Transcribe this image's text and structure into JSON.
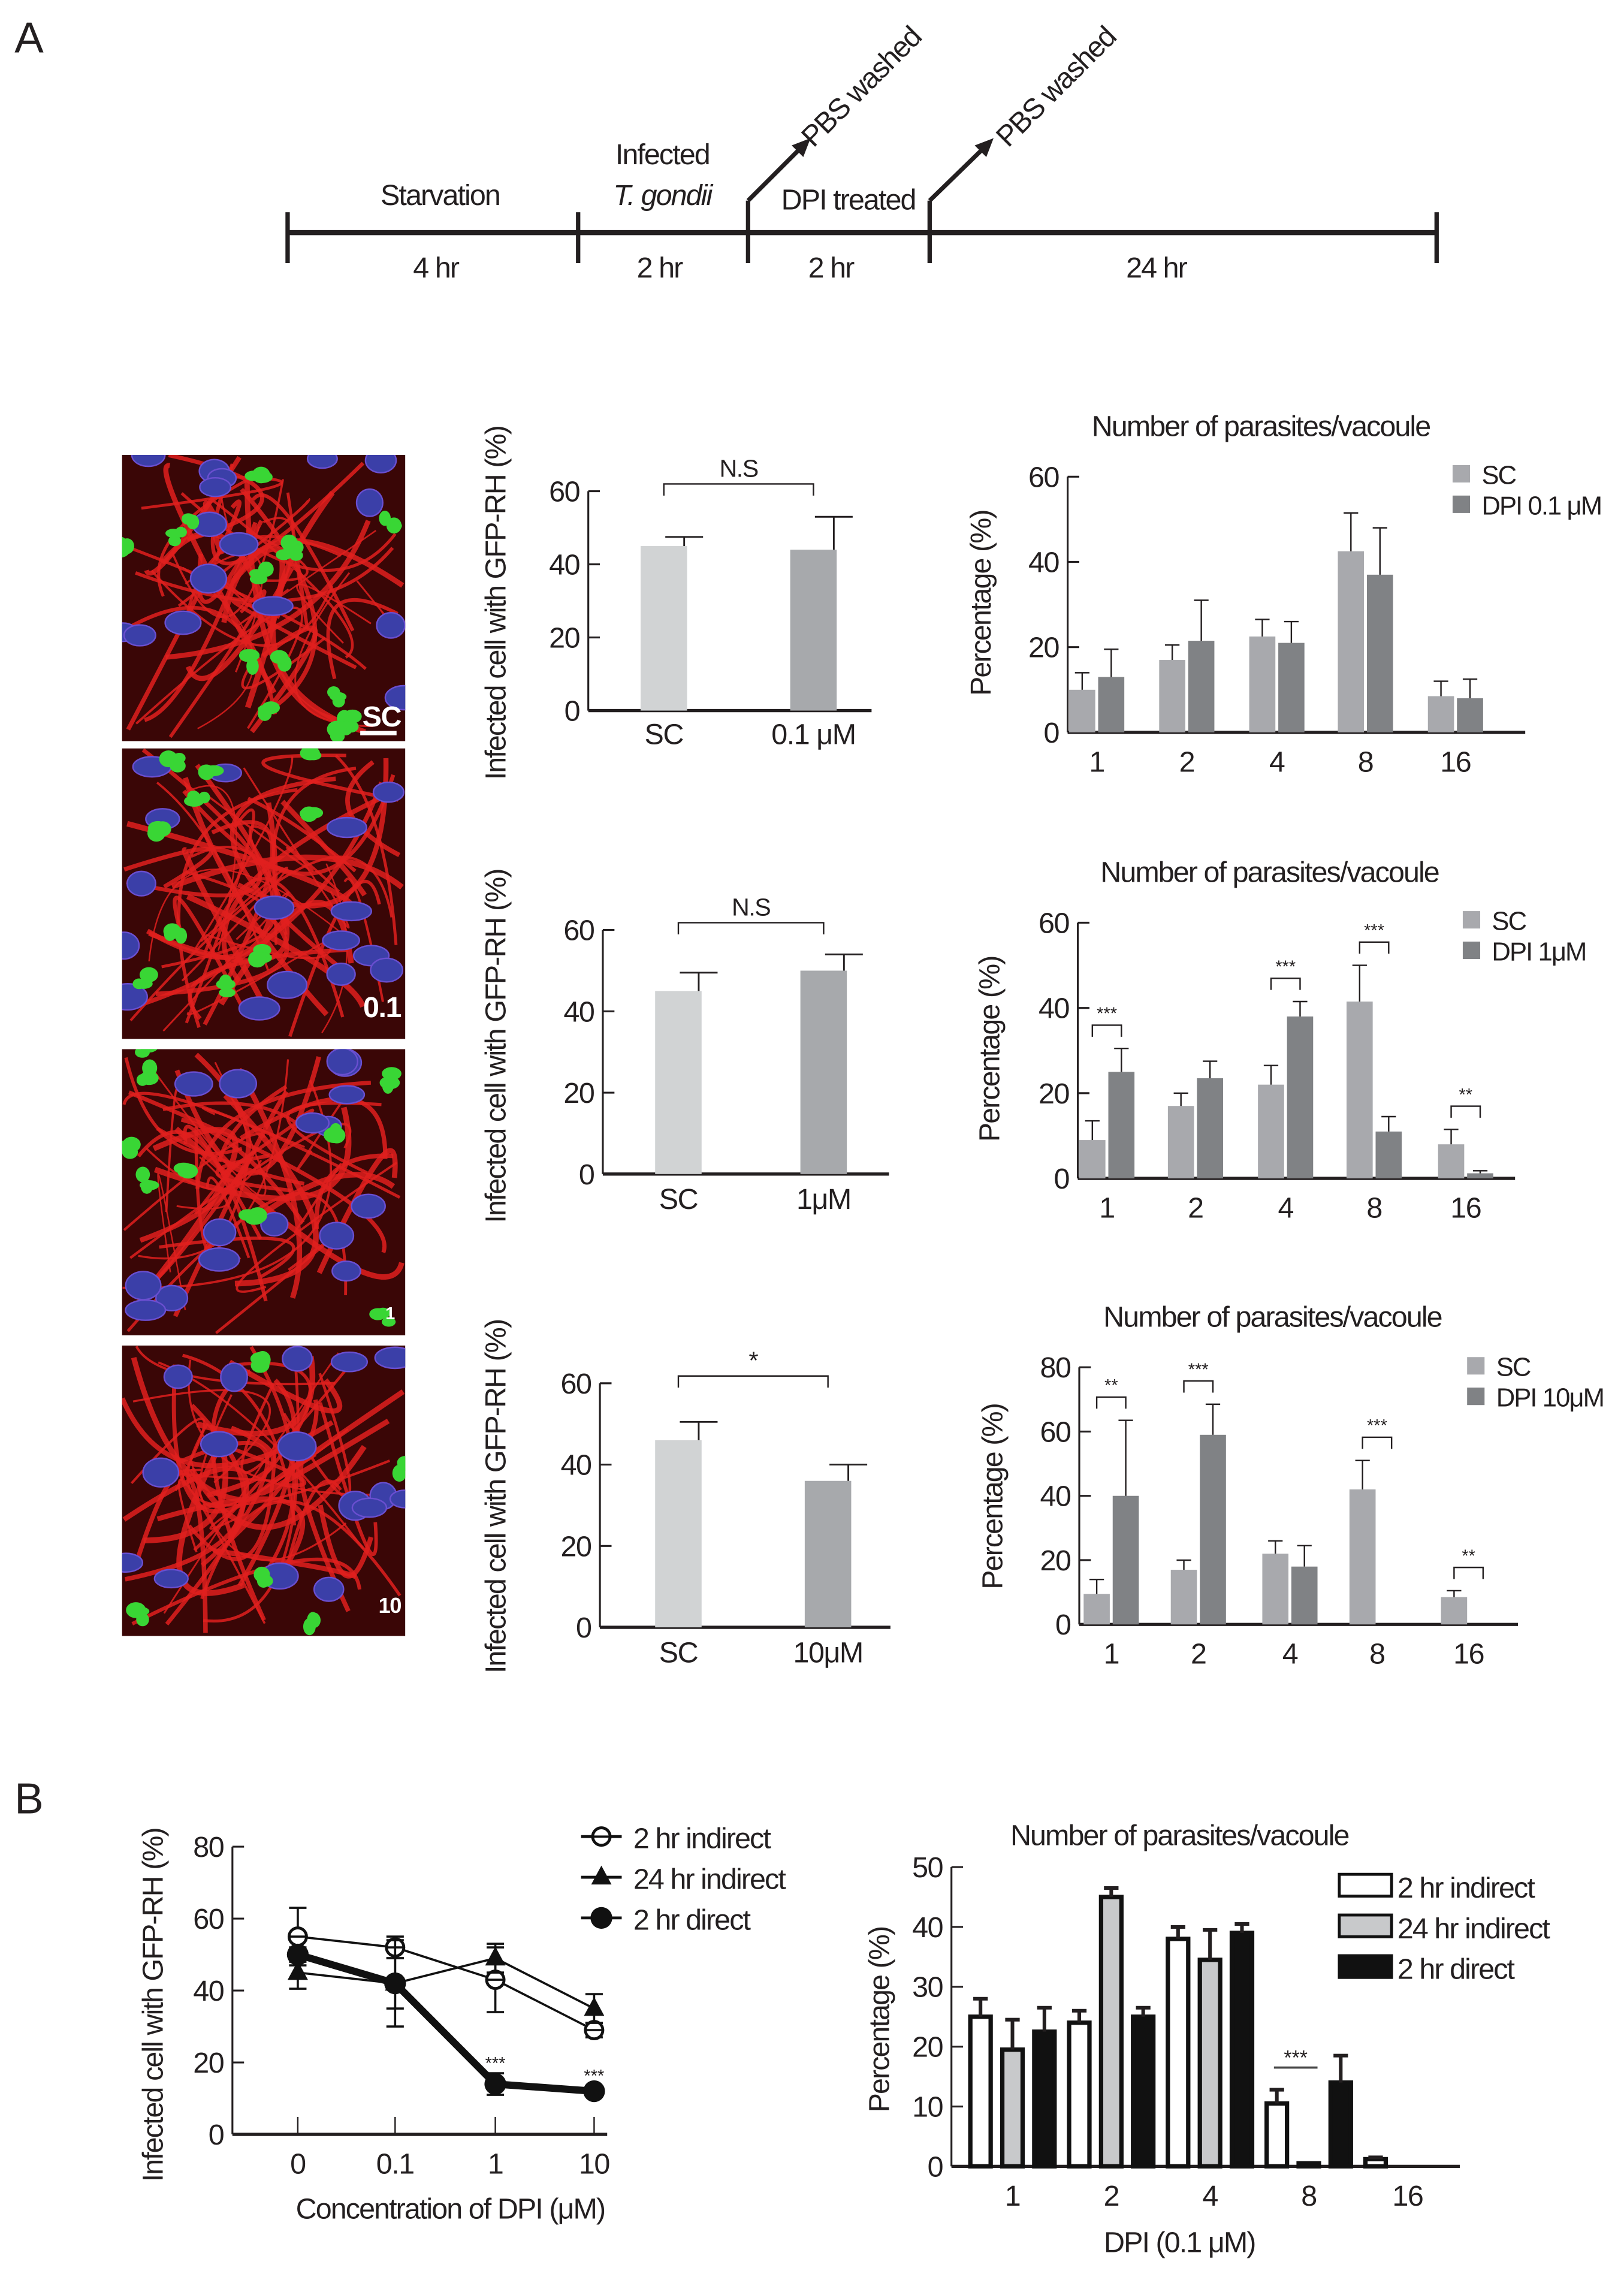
{
  "panel_labels": {
    "a": "A",
    "b": "B"
  },
  "timeline": {
    "steps": [
      {
        "label": "Starvation",
        "duration": "4 hr"
      },
      {
        "label": "Infected",
        "label2": "T. gondii",
        "duration": "2 hr"
      },
      {
        "label": "DPI treated",
        "duration": "2 hr"
      },
      {
        "label": "",
        "duration": "24 hr"
      }
    ],
    "arrows": [
      "PBS washed",
      "PBS washed"
    ]
  },
  "micrographs": [
    {
      "label": "SC"
    },
    {
      "label": "0.1"
    },
    {
      "label": "1"
    },
    {
      "label": "10"
    }
  ],
  "colors": {
    "sc": "#a8a9ad",
    "dpi": "#808285",
    "infection_sc": "#d1d3d4",
    "infection_dpi": "#a7a9ac",
    "nuclei": "#3b3fa8",
    "parasites": "#39d635",
    "actin": "#e0201e"
  },
  "chart_data": [
    {
      "type": "bar",
      "ylabel": "Infected cell with GFP-RH (%)",
      "categories": [
        "SC",
        "0.1 μM"
      ],
      "values": [
        45,
        44
      ],
      "errors": [
        2.5,
        9
      ],
      "ylim": [
        0,
        60
      ],
      "yticks": [
        "0",
        "20",
        "40",
        "60"
      ],
      "annotation": {
        "text": "N.S",
        "between": [
          "SC",
          "0.1 μM"
        ]
      }
    },
    {
      "type": "bar",
      "title": "Number of parasites/vacoule",
      "ylabel": "Percentage (%)",
      "categories": [
        "1",
        "2",
        "4",
        "8",
        "16"
      ],
      "ylim": [
        0,
        60
      ],
      "yticks": [
        "0",
        "20",
        "40",
        "60"
      ],
      "legend": "top-right",
      "series": [
        {
          "name": "SC",
          "values": [
            10,
            17,
            22.5,
            42.5,
            8.5
          ],
          "errors": [
            4,
            3.5,
            4,
            9,
            3.5
          ]
        },
        {
          "name": "DPI 0.1 μM",
          "values": [
            13,
            21.5,
            21,
            37,
            8
          ],
          "errors": [
            6.5,
            9.5,
            5,
            11,
            4.5
          ]
        }
      ],
      "significance": []
    },
    {
      "type": "bar",
      "ylabel": "Infected cell with GFP-RH (%)",
      "categories": [
        "SC",
        "1μM"
      ],
      "values": [
        45,
        50
      ],
      "errors": [
        4.5,
        4
      ],
      "ylim": [
        0,
        60
      ],
      "yticks": [
        "0",
        "20",
        "40",
        "60"
      ],
      "annotation": {
        "text": "N.S",
        "between": [
          "SC",
          "1μM"
        ]
      }
    },
    {
      "type": "bar",
      "title": "Number of parasites/vacoule",
      "ylabel": "Percentage (%)",
      "categories": [
        "1",
        "2",
        "4",
        "8",
        "16"
      ],
      "ylim": [
        0,
        60
      ],
      "yticks": [
        "0",
        "20",
        "40",
        "60"
      ],
      "legend": "top-right",
      "series": [
        {
          "name": "SC",
          "values": [
            9,
            17,
            22,
            41.5,
            8
          ],
          "errors": [
            4.5,
            3,
            4.5,
            8.5,
            3.5
          ]
        },
        {
          "name": "DPI 1μM",
          "values": [
            25,
            23.5,
            38,
            11,
            1.2
          ],
          "errors": [
            5.5,
            4,
            3.5,
            3.5,
            0.6
          ]
        }
      ],
      "significance": [
        {
          "category": "1",
          "text": "***"
        },
        {
          "category": "4",
          "text": "***"
        },
        {
          "category": "8",
          "text": "***"
        },
        {
          "category": "16",
          "text": "**"
        }
      ]
    },
    {
      "type": "bar",
      "ylabel": "Infected cell with GFP-RH (%)",
      "categories": [
        "SC",
        "10μM"
      ],
      "values": [
        46,
        36
      ],
      "errors": [
        4.5,
        4
      ],
      "ylim": [
        0,
        60
      ],
      "yticks": [
        "0",
        "20",
        "40",
        "60"
      ],
      "annotation": {
        "text": "*",
        "between": [
          "SC",
          "10μM"
        ]
      }
    },
    {
      "type": "bar",
      "title": "Number of parasites/vacoule",
      "ylabel": "Percentage (%)",
      "categories": [
        "1",
        "2",
        "4",
        "8",
        "16"
      ],
      "ylim": [
        0,
        80
      ],
      "yticks": [
        "0",
        "20",
        "40",
        "60",
        "80"
      ],
      "legend": "top-right",
      "series": [
        {
          "name": "SC",
          "values": [
            9.5,
            17,
            22,
            42,
            8.5
          ],
          "errors": [
            4.5,
            3,
            4,
            9,
            2
          ]
        },
        {
          "name": "DPI 10μM",
          "values": [
            40,
            59,
            18,
            0,
            0
          ],
          "errors": [
            23.5,
            9.5,
            6.5,
            0,
            0
          ]
        }
      ],
      "significance": [
        {
          "category": "1",
          "text": "**"
        },
        {
          "category": "2",
          "text": "***"
        },
        {
          "category": "8",
          "text": "***"
        },
        {
          "category": "16",
          "text": "**"
        }
      ]
    },
    {
      "type": "line",
      "ylabel": "Infected cell with GFP-RH (%)",
      "xlabel": "Concentration of DPI (μM)",
      "x": [
        "0",
        "0.1",
        "1",
        "10"
      ],
      "ylim": [
        0,
        80
      ],
      "yticks": [
        "0",
        "20",
        "40",
        "60",
        "80"
      ],
      "legend": "top-right",
      "series": [
        {
          "name": "2 hr indirect",
          "marker": "open-circle",
          "values": [
            55,
            52,
            43,
            29
          ],
          "errors": [
            8,
            3,
            9,
            2
          ]
        },
        {
          "name": "24 hr indirect",
          "marker": "triangle",
          "values": [
            45,
            42,
            49,
            35
          ],
          "errors": [
            4.5,
            7,
            4,
            4
          ]
        },
        {
          "name": "2 hr direct",
          "marker": "filled-circle",
          "values": [
            50,
            42,
            14,
            12
          ],
          "errors": [
            2,
            12,
            3,
            1.5
          ]
        }
      ],
      "annotations": [
        {
          "x": "1",
          "text": "***"
        },
        {
          "x": "10",
          "text": "***"
        }
      ]
    },
    {
      "type": "bar",
      "title": "Number of parasites/vacoule",
      "ylabel": "Percentage (%)",
      "xlabel": "DPI (0.1 μM)",
      "categories": [
        "1",
        "2",
        "4",
        "8",
        "16"
      ],
      "ylim": [
        0,
        50
      ],
      "yticks": [
        "0",
        "10",
        "20",
        "30",
        "40",
        "50"
      ],
      "legend": "top-right",
      "series": [
        {
          "name": "2 hr indirect",
          "color": "#ffffff",
          "values": [
            25,
            24,
            38,
            10.5,
            1.2
          ],
          "errors": [
            3,
            2,
            2,
            2.3,
            0.3
          ]
        },
        {
          "name": "24 hr indirect",
          "color": "#c8c9cb",
          "values": [
            19.5,
            45,
            34.5,
            0.5,
            0
          ],
          "errors": [
            5,
            1.5,
            5,
            0,
            0
          ]
        },
        {
          "name": "2 hr direct",
          "color": "#111111",
          "values": [
            22.5,
            25,
            39,
            14,
            0
          ],
          "errors": [
            4,
            1.5,
            1.5,
            4.5,
            0
          ]
        }
      ],
      "significance": [
        {
          "category": "8",
          "text": "***",
          "series": [
            "2 hr indirect",
            "24 hr indirect"
          ]
        }
      ]
    }
  ]
}
